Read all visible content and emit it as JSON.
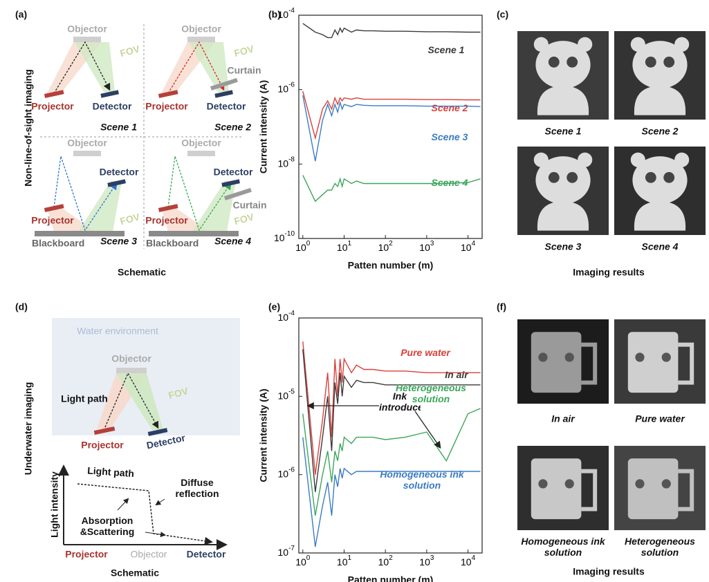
{
  "panel_labels": [
    "(a)",
    "(b)",
    "(c)",
    "(d)",
    "(e)",
    "(f)"
  ],
  "panel_a": {
    "side_title": "Non-line-of-sight imaging",
    "caption": "Schematic",
    "scenes": [
      {
        "name": "Scene 1",
        "objector": "Objector",
        "fov": "FOV",
        "projector": "Projector",
        "detector": "Detector"
      },
      {
        "name": "Scene 2",
        "objector": "Objector",
        "fov": "FOV",
        "projector": "Projector",
        "detector": "Detector",
        "curtain": "Curtain"
      },
      {
        "name": "Scene 3",
        "objector": "Objector",
        "fov": "FOV",
        "projector": "Projector",
        "detector": "Detector",
        "blackboard": "Blackboard"
      },
      {
        "name": "Scene 4",
        "objector": "Objector",
        "fov": "FOV",
        "projector": "Projector",
        "detector": "Detector",
        "curtain": "Curtain",
        "blackboard": "Blackboard"
      }
    ]
  },
  "panel_c": {
    "captions": [
      "Scene 1",
      "Scene 2",
      "Scene 3",
      "Scene 4"
    ],
    "caption": "Imaging results"
  },
  "panel_d": {
    "side_title": "Underwater imaging",
    "environment": "Water environment",
    "objector": "Objector",
    "fov": "FOV",
    "light_path": "Light path",
    "projector": "Projector",
    "detector": "Detector",
    "graph": {
      "y_label": "Light intensity",
      "light_path": "Light path",
      "diffuse": "Diffuse reflection",
      "absorption": "Absorption &Scattering",
      "projector": "Projector",
      "objector": "Objector",
      "detector": "Detector"
    },
    "caption": "Schematic"
  },
  "panel_f": {
    "captions": [
      "In air",
      "Pure water",
      "Homogeneous ink solution",
      "Heterogeneous solution"
    ],
    "caption": "Imaging results"
  },
  "chart_data": [
    {
      "type": "line",
      "x_label": "Patten number (m)",
      "y_label": "Current intensity (A)",
      "log_x": true,
      "log_y": true,
      "xlim": [
        0.8,
        22000
      ],
      "ylim": [
        1e-10,
        0.0001
      ],
      "xticks": [
        {
          "value": 1,
          "label": "10",
          "exponent": "0"
        },
        {
          "value": 10,
          "label": "10",
          "exponent": "1"
        },
        {
          "value": 100,
          "label": "10",
          "exponent": "2"
        },
        {
          "value": 1000,
          "label": "10",
          "exponent": "3"
        },
        {
          "value": 10000,
          "label": "10",
          "exponent": "4"
        }
      ],
      "yticks": [
        {
          "value": 1e-10,
          "label": "10",
          "exponent": "-10"
        },
        {
          "value": 1e-08,
          "label": "10",
          "exponent": "-8"
        },
        {
          "value": 1e-06,
          "label": "10",
          "exponent": "-6"
        },
        {
          "value": 0.0001,
          "label": "10",
          "exponent": "-4"
        }
      ],
      "x": [
        1,
        2,
        3,
        4,
        5,
        6,
        7,
        8,
        9,
        10,
        15,
        20,
        30,
        50,
        100,
        300,
        1000,
        3000,
        10000,
        20000
      ],
      "series": [
        {
          "name": "Scene 1",
          "color": "#3a3a3a",
          "values": [
            6e-05,
            3.5e-05,
            3e-05,
            2.5e-05,
            2.5e-05,
            4e-05,
            3e-05,
            4.5e-05,
            3.5e-05,
            4.5e-05,
            3.5e-05,
            4e-05,
            3.8e-05,
            3.8e-05,
            3.7e-05,
            3.7e-05,
            3.6e-05,
            3.6e-05,
            3.5e-05,
            3.5e-05
          ]
        },
        {
          "name": "Scene 2",
          "color": "#d9403a",
          "values": [
            9e-07,
            5e-08,
            3e-07,
            5e-07,
            3e-07,
            6e-07,
            4e-07,
            6e-07,
            5e-07,
            6e-07,
            5.5e-07,
            6e-07,
            5.5e-07,
            5.5e-07,
            5.5e-07,
            5.5e-07,
            5.4e-07,
            5.4e-07,
            5.3e-07,
            5.3e-07
          ]
        },
        {
          "name": "Scene 3",
          "color": "#3b7bc2",
          "values": [
            7e-07,
            1.2e-08,
            1.5e-07,
            4e-07,
            2e-07,
            4e-07,
            2.5e-07,
            4.5e-07,
            3e-07,
            4e-07,
            3.5e-07,
            4e-07,
            3.8e-07,
            3.7e-07,
            3.7e-07,
            3.7e-07,
            3.6e-07,
            3.6e-07,
            3.6e-07,
            3.5e-07
          ]
        },
        {
          "name": "Scene 4",
          "color": "#3aa65a",
          "values": [
            5e-09,
            1e-09,
            1.5e-09,
            2e-09,
            2e-09,
            3e-09,
            2.5e-09,
            4e-09,
            2.5e-09,
            4e-09,
            3e-09,
            3.5e-09,
            3e-09,
            3e-09,
            3e-09,
            3e-09,
            3e-09,
            3e-09,
            3.2e-09,
            4e-09
          ]
        }
      ]
    },
    {
      "type": "line",
      "x_label": "Patten number (m)",
      "y_label": "Current intensity (A)",
      "log_x": true,
      "log_y": true,
      "xlim": [
        0.8,
        22000
      ],
      "ylim": [
        1e-07,
        0.0001
      ],
      "xticks": [
        {
          "value": 1,
          "label": "10",
          "exponent": "0"
        },
        {
          "value": 10,
          "label": "10",
          "exponent": "1"
        },
        {
          "value": 100,
          "label": "10",
          "exponent": "2"
        },
        {
          "value": 1000,
          "label": "10",
          "exponent": "3"
        },
        {
          "value": 10000,
          "label": "10",
          "exponent": "4"
        }
      ],
      "yticks": [
        {
          "value": 1e-07,
          "label": "10",
          "exponent": "-7"
        },
        {
          "value": 1e-06,
          "label": "10",
          "exponent": "-6"
        },
        {
          "value": 1e-05,
          "label": "10",
          "exponent": "-5"
        },
        {
          "value": 0.0001,
          "label": "10",
          "exponent": "-4"
        }
      ],
      "x": [
        1,
        2,
        3,
        4,
        5,
        6,
        7,
        8,
        9,
        10,
        15,
        20,
        30,
        50,
        100,
        300,
        1000,
        3000,
        10000,
        20000
      ],
      "annotation": "Ink introduced",
      "series": [
        {
          "name": "Pure water",
          "color": "#d9403a",
          "values": [
            5e-05,
            1e-06,
            5e-06,
            2e-05,
            3e-06,
            3e-05,
            1e-05,
            3e-05,
            1.5e-05,
            3e-05,
            2e-05,
            2.5e-05,
            2.2e-05,
            2.2e-05,
            2.1e-05,
            2.1e-05,
            2e-05,
            2e-05,
            2e-05,
            2e-05
          ]
        },
        {
          "name": "In air",
          "color": "#3a3a3a",
          "values": [
            4e-05,
            6e-07,
            3e-06,
            1e-05,
            2e-06,
            1.5e-05,
            8e-06,
            2e-05,
            1e-05,
            1.8e-05,
            1.3e-05,
            1.6e-05,
            1.5e-05,
            1.5e-05,
            1.4e-05,
            1.4e-05,
            1.4e-05,
            1.4e-05,
            1.4e-05,
            1.4e-05
          ]
        },
        {
          "name": "Heterogeneous solution",
          "color": "#3aa65a",
          "values": [
            6e-06,
            3e-07,
            1e-06,
            2e-06,
            8e-07,
            2e-06,
            1.5e-06,
            2.5e-06,
            2e-06,
            3e-06,
            2.5e-06,
            3e-06,
            3e-06,
            3e-06,
            2.8e-06,
            3e-06,
            3.5e-06,
            1.5e-06,
            6e-06,
            7e-06
          ]
        },
        {
          "name": "Homogeneous ink solution",
          "color": "#3b7bc2",
          "values": [
            3e-06,
            1.2e-07,
            4e-07,
            8e-07,
            3e-07,
            1e-06,
            7e-07,
            1.2e-06,
            9e-07,
            1.2e-06,
            1e-06,
            1.1e-06,
            1.1e-06,
            1.1e-06,
            1.1e-06,
            1.1e-06,
            1.1e-06,
            1.1e-06,
            1.1e-06,
            1.1e-06
          ]
        }
      ]
    }
  ]
}
